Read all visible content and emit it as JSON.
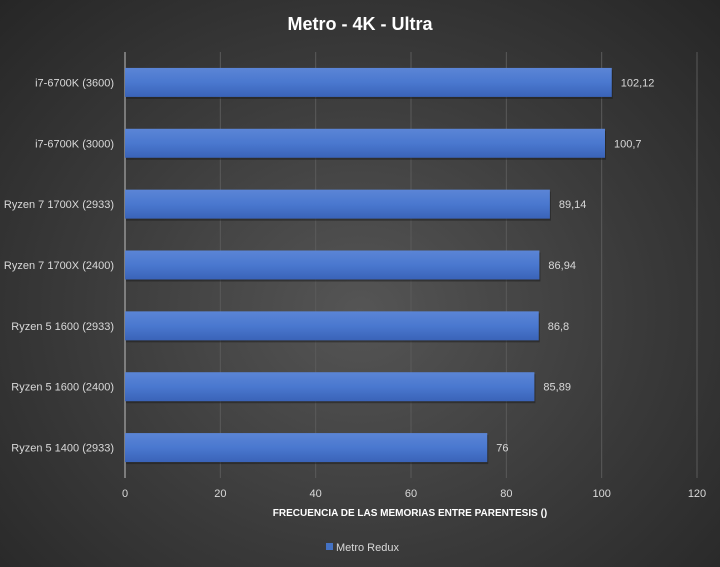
{
  "chart_data": {
    "type": "bar",
    "orientation": "horizontal",
    "title": "Metro  - 4K - Ultra",
    "xlabel": "FRECUENCIA DE LAS MEMORIAS  ENTRE PARENTESIS ()",
    "ylabel": "",
    "categories": [
      "i7-6700K (3600)",
      "i7-6700K (3000)",
      "Ryzen 7 1700X (2933)",
      "Ryzen 7 1700X (2400)",
      "Ryzen 5 1600 (2933)",
      "Ryzen 5 1600 (2400)",
      "Ryzen 5 1400 (2933)"
    ],
    "series": [
      {
        "name": "Metro Redux",
        "values": [
          102.12,
          100.7,
          89.14,
          86.94,
          86.8,
          85.89,
          76
        ],
        "labels": [
          "102,12",
          "100,7",
          "89,14",
          "86,94",
          "86,8",
          "85,89",
          "76"
        ],
        "color": "#4472c4"
      }
    ],
    "xlim": [
      0,
      120
    ],
    "xticks": [
      0,
      20,
      40,
      60,
      80,
      100,
      120
    ],
    "grid": true,
    "legend": "bottom"
  }
}
